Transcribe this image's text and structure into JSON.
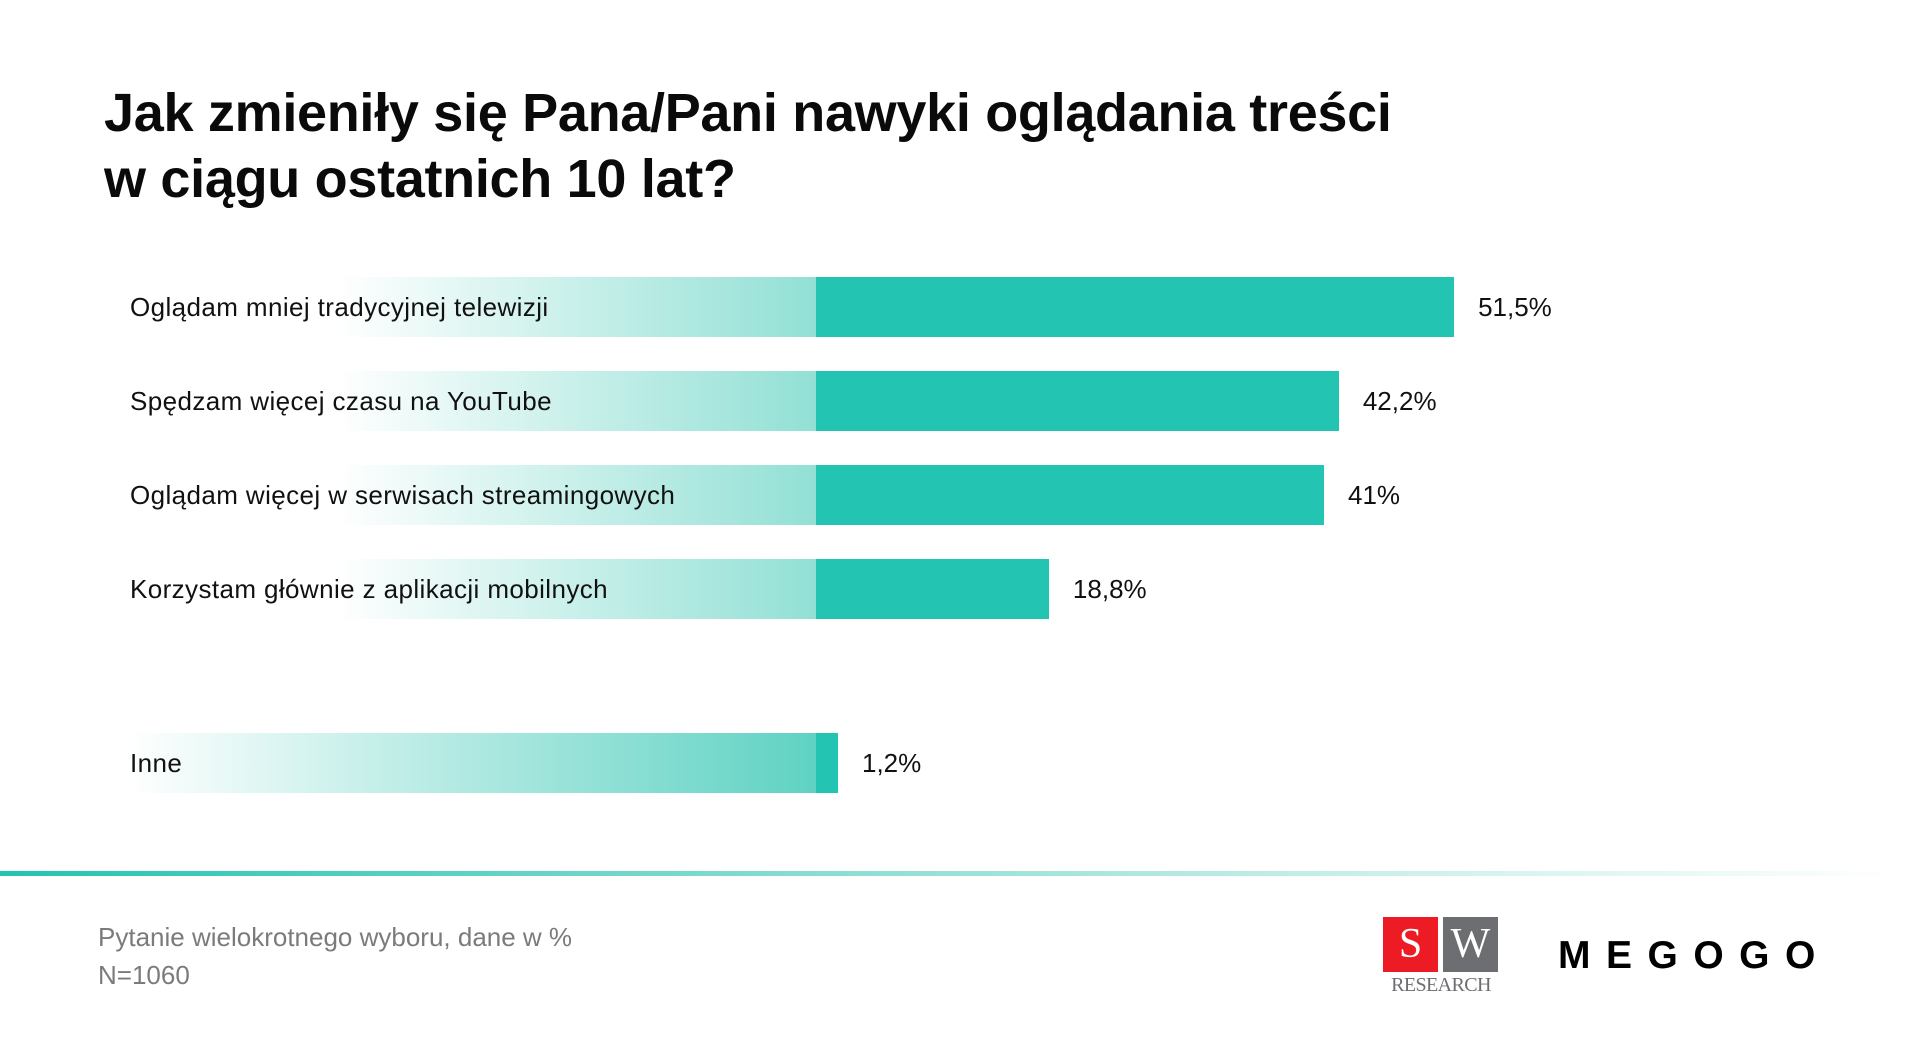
{
  "title": {
    "line1": "Jak zmieniły się Pana/Pani nawyki oglądania treści",
    "line2": "w ciągu ostatnich 10 lat?"
  },
  "colors": {
    "bar_solid": "#23c4b2",
    "bar_fade_end": "#92e0d5",
    "other_fade_end": "#5fd2c3",
    "divider": "#23c4b2",
    "sw_red": "#ed1c24",
    "sw_gray": "#6d6e71",
    "footnote": "#7b7b7b"
  },
  "chart_data": {
    "type": "bar",
    "orientation": "horizontal",
    "title": "Jak zmieniły się Pana/Pani nawyki oglądania treści w ciągu ostatnich 10 lat?",
    "categories": [
      "Oglądam mniej tradycyjnej telewizji",
      "Spędzam więcej czasu na YouTube",
      "Oglądam więcej w serwisach streamingowych",
      "Korzystam głównie z aplikacji mobilnych",
      "Inne"
    ],
    "values": [
      51.5,
      42.2,
      41,
      18.8,
      1.2
    ],
    "value_labels": [
      "51,5%",
      "42,2%",
      "41%",
      "18,8%",
      "1,2%"
    ],
    "unit": "%",
    "xlabel": "",
    "ylabel": "",
    "grid": false,
    "legend": null,
    "note": "Pytanie wielokrotnego wyboru, dane w %",
    "sample_size": "N=1060"
  },
  "rows": [
    {
      "label": "Oglądam mniej tradycyjnej telewizji",
      "value": 51.5,
      "value_label": "51,5%"
    },
    {
      "label": "Spędzam więcej czasu na YouTube",
      "value": 42.2,
      "value_label": "42,2%"
    },
    {
      "label": "Oglądam więcej w serwisach streamingowych",
      "value": 41,
      "value_label": "41%"
    },
    {
      "label": "Korzystam głównie z aplikacji mobilnych",
      "value": 18.8,
      "value_label": "18,8%"
    },
    {
      "label": "Inne",
      "value": 1.2,
      "value_label": "1,2%"
    }
  ],
  "footer": {
    "note": "Pytanie wielokrotnego wyboru, dane w %",
    "sample": "N=1060"
  },
  "logos": {
    "sw_s": "S",
    "sw_w": "W",
    "sw_research": "RESEARCH",
    "megogo": "MEGOGO"
  }
}
